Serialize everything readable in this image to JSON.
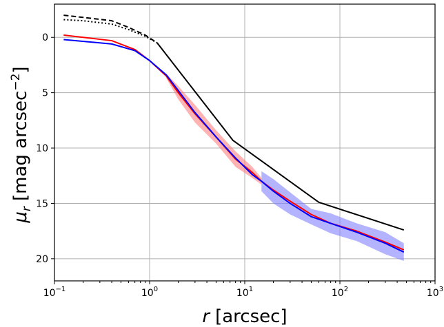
{
  "chart_data": {
    "type": "line",
    "title": "",
    "xlabel": {
      "main": "r",
      "unit": "[arcsec]"
    },
    "ylabel": {
      "main": "μ",
      "sub": "r",
      "unit": "[mag arcsec",
      "exp": "−2",
      "close": "]"
    },
    "x_scale": "log",
    "xlim": [
      0.1,
      1000
    ],
    "ylim": [
      22,
      -3
    ],
    "y_inverted": true,
    "grid": true,
    "x_ticks": [
      {
        "value": 0.1,
        "base": "10",
        "exp": "−1"
      },
      {
        "value": 1,
        "base": "10",
        "exp": "0"
      },
      {
        "value": 10,
        "base": "10",
        "exp": "1"
      },
      {
        "value": 100,
        "base": "10",
        "exp": "2"
      },
      {
        "value": 1000,
        "base": "10",
        "exp": "3"
      }
    ],
    "y_ticks": [
      {
        "value": 0,
        "label": "0"
      },
      {
        "value": 5,
        "label": "5"
      },
      {
        "value": 10,
        "label": "10"
      },
      {
        "value": 15,
        "label": "15"
      },
      {
        "value": 20,
        "label": "20"
      }
    ],
    "series": [
      {
        "color": "#000000",
        "style": "dashed",
        "points": [
          [
            0.125,
            -2.0
          ],
          [
            0.2,
            -1.8
          ],
          [
            0.4,
            -1.5
          ],
          [
            0.6,
            -0.9
          ],
          [
            0.9,
            -0.2
          ],
          [
            1.2,
            0.5
          ]
        ]
      },
      {
        "color": "#000000",
        "style": "dotted",
        "points": [
          [
            0.125,
            -1.6
          ],
          [
            0.2,
            -1.5
          ],
          [
            0.4,
            -1.2
          ],
          [
            0.6,
            -0.7
          ],
          [
            0.9,
            -0.1
          ],
          [
            1.2,
            0.5
          ]
        ]
      },
      {
        "color": "#000000",
        "style": "solid",
        "points": [
          [
            1.2,
            0.5
          ],
          [
            7.5,
            9.3
          ],
          [
            60,
            14.9
          ],
          [
            470,
            17.4
          ]
        ]
      },
      {
        "color": "#ff0000",
        "style": "solid",
        "band_color": "#ff8080",
        "points": [
          [
            0.125,
            -0.2
          ],
          [
            0.4,
            0.3
          ],
          [
            0.7,
            1.1
          ],
          [
            1.0,
            2.1
          ],
          [
            1.5,
            3.5
          ],
          [
            2.0,
            5.0
          ],
          [
            3.0,
            6.9
          ],
          [
            5.0,
            9.0
          ],
          [
            8.0,
            11.0
          ],
          [
            12.0,
            12.2
          ],
          [
            15.0,
            13.0
          ],
          [
            20.0,
            13.8
          ],
          [
            30.0,
            14.8
          ],
          [
            50.0,
            16.0
          ],
          [
            80.0,
            16.8
          ],
          [
            150.0,
            17.5
          ],
          [
            300.0,
            18.5
          ],
          [
            470.0,
            19.2
          ]
        ],
        "band": [
          [
            1.5,
            0.2
          ],
          [
            2.0,
            0.6
          ],
          [
            3.0,
            0.8
          ],
          [
            5.0,
            0.6
          ],
          [
            8.0,
            0.7
          ],
          [
            12.0,
            0.5
          ],
          [
            15.0,
            0.3
          ]
        ]
      },
      {
        "color": "#0000ff",
        "style": "solid",
        "band_color": "#8080ff",
        "points": [
          [
            0.125,
            0.2
          ],
          [
            0.4,
            0.6
          ],
          [
            0.7,
            1.2
          ],
          [
            1.0,
            2.1
          ],
          [
            1.5,
            3.4
          ],
          [
            2.0,
            4.8
          ],
          [
            3.0,
            6.8
          ],
          [
            5.0,
            9.0
          ],
          [
            8.0,
            10.9
          ],
          [
            12.0,
            12.4
          ],
          [
            15.0,
            13.0
          ],
          [
            20.0,
            13.9
          ],
          [
            30.0,
            15.0
          ],
          [
            50.0,
            16.2
          ],
          [
            80.0,
            16.8
          ],
          [
            150.0,
            17.6
          ],
          [
            300.0,
            18.6
          ],
          [
            470.0,
            19.4
          ]
        ],
        "band": [
          [
            15.0,
            0.9
          ],
          [
            20.0,
            1.1
          ],
          [
            30.0,
            1.0
          ],
          [
            50.0,
            0.7
          ],
          [
            80.0,
            0.9
          ],
          [
            150.0,
            0.8
          ],
          [
            300.0,
            1.0
          ],
          [
            470.0,
            0.8
          ]
        ]
      }
    ]
  }
}
